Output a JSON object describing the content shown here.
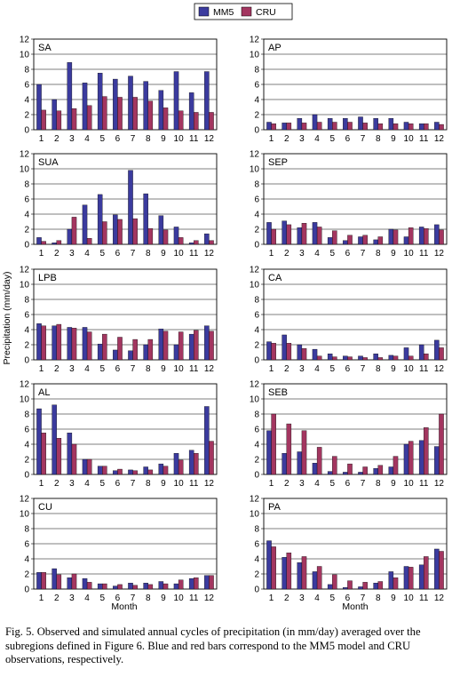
{
  "legend": [
    {
      "name": "MM5",
      "color": "#3b3b9e"
    },
    {
      "name": "CRU",
      "color": "#a33660"
    }
  ],
  "y_axis_label": "Precipitation (mm/day)",
  "x_axis_label": "Month",
  "caption": "Fig. 5. Observed and simulated annual cycles of precipitation (in mm/day) averaged over the subregions defined in Figure 6. Blue and red bars correspond to the MM5 model and CRU observations, respectively.",
  "chart_data": [
    {
      "type": "bar",
      "title": "SA",
      "categories": [
        "1",
        "2",
        "3",
        "4",
        "5",
        "6",
        "7",
        "8",
        "9",
        "10",
        "11",
        "12"
      ],
      "ylim": [
        0,
        12
      ],
      "yticks": [
        0,
        2,
        4,
        6,
        8,
        10,
        12
      ],
      "grid": true,
      "series": [
        {
          "name": "MM5",
          "values": [
            6.0,
            4.0,
            8.9,
            6.2,
            7.5,
            6.7,
            7.1,
            6.4,
            5.2,
            7.7,
            4.9,
            7.7
          ]
        },
        {
          "name": "CRU",
          "values": [
            2.6,
            2.5,
            2.8,
            3.2,
            4.4,
            4.3,
            4.3,
            3.8,
            2.9,
            2.5,
            2.3,
            2.3
          ]
        }
      ]
    },
    {
      "type": "bar",
      "title": "AP",
      "categories": [
        "1",
        "2",
        "3",
        "4",
        "5",
        "6",
        "7",
        "8",
        "9",
        "10",
        "11",
        "12"
      ],
      "ylim": [
        0,
        12
      ],
      "yticks": [
        0,
        2,
        4,
        6,
        8,
        10,
        12
      ],
      "grid": true,
      "series": [
        {
          "name": "MM5",
          "values": [
            1.0,
            0.9,
            1.5,
            2.0,
            1.5,
            1.5,
            1.7,
            1.5,
            1.5,
            1.0,
            0.8,
            1.0
          ]
        },
        {
          "name": "CRU",
          "values": [
            0.8,
            0.9,
            0.9,
            1.0,
            1.0,
            1.0,
            0.9,
            0.8,
            0.8,
            0.8,
            0.8,
            0.7
          ]
        }
      ]
    },
    {
      "type": "bar",
      "title": "SUA",
      "categories": [
        "1",
        "2",
        "3",
        "4",
        "5",
        "6",
        "7",
        "8",
        "9",
        "10",
        "11",
        "12"
      ],
      "ylim": [
        0,
        12
      ],
      "yticks": [
        0,
        2,
        4,
        6,
        8,
        10,
        12
      ],
      "grid": true,
      "series": [
        {
          "name": "MM5",
          "values": [
            0.9,
            0.2,
            2.0,
            5.2,
            6.6,
            3.9,
            9.8,
            6.7,
            3.8,
            2.3,
            0.2,
            1.4
          ]
        },
        {
          "name": "CRU",
          "values": [
            0.4,
            0.5,
            3.6,
            0.8,
            3.0,
            3.3,
            3.4,
            2.1,
            1.9,
            0.9,
            0.5,
            0.5
          ]
        }
      ]
    },
    {
      "type": "bar",
      "title": "SEP",
      "categories": [
        "1",
        "2",
        "3",
        "4",
        "5",
        "6",
        "7",
        "8",
        "9",
        "10",
        "11",
        "12"
      ],
      "ylim": [
        0,
        12
      ],
      "yticks": [
        0,
        2,
        4,
        6,
        8,
        10,
        12
      ],
      "grid": true,
      "series": [
        {
          "name": "MM5",
          "values": [
            2.9,
            3.1,
            2.2,
            2.9,
            0.9,
            0.5,
            1.0,
            0.6,
            2.0,
            1.0,
            2.3,
            2.6
          ]
        },
        {
          "name": "CRU",
          "values": [
            2.0,
            2.6,
            2.8,
            2.3,
            1.8,
            1.2,
            1.2,
            1.0,
            1.9,
            2.2,
            2.1,
            1.9
          ]
        }
      ]
    },
    {
      "type": "bar",
      "title": "LPB",
      "categories": [
        "1",
        "2",
        "3",
        "4",
        "5",
        "6",
        "7",
        "8",
        "9",
        "10",
        "11",
        "12"
      ],
      "ylim": [
        0,
        12
      ],
      "yticks": [
        0,
        2,
        4,
        6,
        8,
        10,
        12
      ],
      "grid": true,
      "series": [
        {
          "name": "MM5",
          "values": [
            4.8,
            4.5,
            4.3,
            4.3,
            2.1,
            1.3,
            1.2,
            2.0,
            4.1,
            2.0,
            3.4,
            4.5
          ]
        },
        {
          "name": "CRU",
          "values": [
            4.5,
            4.7,
            4.2,
            3.7,
            3.4,
            3.0,
            2.7,
            2.7,
            3.8,
            3.7,
            3.9,
            3.8
          ]
        }
      ]
    },
    {
      "type": "bar",
      "title": "CA",
      "categories": [
        "1",
        "2",
        "3",
        "4",
        "5",
        "6",
        "7",
        "8",
        "9",
        "10",
        "11",
        "12"
      ],
      "ylim": [
        0,
        12
      ],
      "yticks": [
        0,
        2,
        4,
        6,
        8,
        10,
        12
      ],
      "grid": true,
      "series": [
        {
          "name": "MM5",
          "values": [
            2.4,
            3.3,
            2.0,
            1.4,
            0.8,
            0.5,
            0.5,
            0.8,
            0.6,
            1.6,
            2.0,
            2.6
          ]
        },
        {
          "name": "CRU",
          "values": [
            2.2,
            2.2,
            1.5,
            0.5,
            0.4,
            0.4,
            0.3,
            0.3,
            0.5,
            0.5,
            0.8,
            1.6
          ]
        }
      ]
    },
    {
      "type": "bar",
      "title": "AL",
      "categories": [
        "1",
        "2",
        "3",
        "4",
        "5",
        "6",
        "7",
        "8",
        "9",
        "10",
        "11",
        "12"
      ],
      "ylim": [
        0,
        12
      ],
      "yticks": [
        0,
        2,
        4,
        6,
        8,
        10,
        12
      ],
      "grid": true,
      "series": [
        {
          "name": "MM5",
          "values": [
            8.7,
            9.2,
            5.5,
            2.0,
            1.1,
            0.5,
            0.6,
            1.0,
            1.4,
            2.8,
            3.2,
            9.0
          ]
        },
        {
          "name": "CRU",
          "values": [
            5.5,
            4.8,
            4.0,
            2.0,
            1.1,
            0.7,
            0.5,
            0.6,
            1.1,
            1.9,
            2.8,
            4.4
          ]
        }
      ]
    },
    {
      "type": "bar",
      "title": "SEB",
      "categories": [
        "1",
        "2",
        "3",
        "4",
        "5",
        "6",
        "7",
        "8",
        "9",
        "10",
        "11",
        "12"
      ],
      "ylim": [
        0,
        12
      ],
      "yticks": [
        0,
        2,
        4,
        6,
        8,
        10,
        12
      ],
      "grid": true,
      "series": [
        {
          "name": "MM5",
          "values": [
            5.8,
            2.8,
            3.0,
            1.5,
            0.4,
            0.3,
            0.3,
            0.8,
            1.0,
            4.0,
            4.5,
            3.7
          ]
        },
        {
          "name": "CRU",
          "values": [
            8.0,
            6.7,
            5.8,
            3.6,
            2.4,
            1.4,
            1.0,
            1.2,
            2.4,
            4.4,
            6.2,
            8.0
          ]
        }
      ]
    },
    {
      "type": "bar",
      "title": "CU",
      "categories": [
        "1",
        "2",
        "3",
        "4",
        "5",
        "6",
        "7",
        "8",
        "9",
        "10",
        "11",
        "12"
      ],
      "ylim": [
        0,
        12
      ],
      "yticks": [
        0,
        2,
        4,
        6,
        8,
        10,
        12
      ],
      "grid": true,
      "series": [
        {
          "name": "MM5",
          "values": [
            2.2,
            2.7,
            1.5,
            1.4,
            0.7,
            0.4,
            0.8,
            0.8,
            1.0,
            0.7,
            1.4,
            1.8
          ]
        },
        {
          "name": "CRU",
          "values": [
            2.2,
            1.9,
            2.0,
            0.9,
            0.7,
            0.6,
            0.5,
            0.6,
            0.7,
            1.2,
            1.5,
            1.8
          ]
        }
      ]
    },
    {
      "type": "bar",
      "title": "PA",
      "categories": [
        "1",
        "2",
        "3",
        "4",
        "5",
        "6",
        "7",
        "8",
        "9",
        "10",
        "11",
        "12"
      ],
      "ylim": [
        0,
        12
      ],
      "yticks": [
        0,
        2,
        4,
        6,
        8,
        10,
        12
      ],
      "grid": true,
      "series": [
        {
          "name": "MM5",
          "values": [
            6.4,
            4.2,
            3.5,
            2.3,
            0.6,
            0.2,
            0.3,
            0.8,
            2.3,
            3.0,
            3.2,
            5.3
          ]
        },
        {
          "name": "CRU",
          "values": [
            5.6,
            4.8,
            4.3,
            3.0,
            1.9,
            1.1,
            0.9,
            1.0,
            1.5,
            2.9,
            4.3,
            5.0
          ]
        }
      ]
    }
  ]
}
